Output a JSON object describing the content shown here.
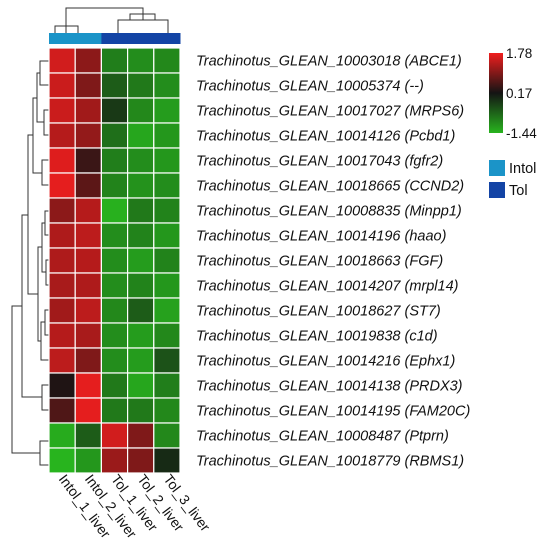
{
  "chart_data": {
    "type": "heatmap",
    "columns": [
      "Intol_1_liver",
      "Intol_2_liver",
      "Tol_1_liver",
      "Tol_2_liver",
      "Tol_3_liver"
    ],
    "column_groups": [
      "Intol",
      "Intol",
      "Tol",
      "Tol",
      "Tol"
    ],
    "rows": [
      "Trachinotus_GLEAN_10003018 (ABCE1)",
      "Trachinotus_GLEAN_10005374 (--)",
      "Trachinotus_GLEAN_10017027 (MRPS6)",
      "Trachinotus_GLEAN_10014126 (Pcbd1)",
      "Trachinotus_GLEAN_10017043 (fgfr2)",
      "Trachinotus_GLEAN_10018665 (CCND2)",
      "Trachinotus_GLEAN_10008835 (Minpp1)",
      "Trachinotus_GLEAN_10014196 (haao)",
      "Trachinotus_GLEAN_10018663 (FGF)",
      "Trachinotus_GLEAN_10014207 (mrpl14)",
      "Trachinotus_GLEAN_10018627 (ST7)",
      "Trachinotus_GLEAN_10019838 (c1d)",
      "Trachinotus_GLEAN_10014216 (Ephx1)",
      "Trachinotus_GLEAN_10014138 (PRDX3)",
      "Trachinotus_GLEAN_10014195 (FAM20C)",
      "Trachinotus_GLEAN_10008487 (Ptprn)",
      "Trachinotus_GLEAN_10018779 (RBMS1)"
    ],
    "values": [
      [
        1.55,
        1.05,
        -0.9,
        -1.05,
        -1.0
      ],
      [
        1.5,
        0.95,
        -0.55,
        -0.85,
        -1.05
      ],
      [
        1.5,
        1.2,
        -0.2,
        -1.0,
        -1.2
      ],
      [
        1.35,
        1.1,
        -0.75,
        -1.3,
        -1.15
      ],
      [
        1.65,
        0.45,
        -0.9,
        -1.05,
        -1.15
      ],
      [
        1.7,
        0.7,
        -0.95,
        -1.1,
        -1.05
      ],
      [
        1.05,
        1.35,
        -1.4,
        -0.85,
        -0.95
      ],
      [
        1.3,
        1.4,
        -1.05,
        -0.95,
        -1.15
      ],
      [
        1.3,
        1.35,
        -1.05,
        -1.2,
        -0.95
      ],
      [
        1.25,
        1.3,
        -1.05,
        -0.95,
        -1.15
      ],
      [
        1.2,
        1.4,
        -1.0,
        -0.55,
        -1.25
      ],
      [
        1.35,
        1.25,
        -1.05,
        -1.2,
        -1.0
      ],
      [
        1.4,
        0.95,
        -1.05,
        -1.2,
        -0.45
      ],
      [
        0.25,
        1.7,
        -0.85,
        -1.3,
        -0.9
      ],
      [
        0.6,
        1.7,
        -0.85,
        -0.85,
        -1.0
      ],
      [
        -1.35,
        -0.55,
        1.55,
        0.95,
        -1.0
      ],
      [
        -1.45,
        -1.15,
        1.15,
        0.95,
        -0.05
      ]
    ],
    "color_scale": {
      "min": -1.44,
      "mid": 0.17,
      "max": 1.78,
      "ticks": [
        "1.78",
        "0.17",
        "-1.44"
      ],
      "colors": {
        "low": "#28b41e",
        "mid": "#141414",
        "high": "#f01e1e"
      }
    },
    "group_legend": [
      {
        "label": "Intol",
        "color": "#1b94c8"
      },
      {
        "label": "Tol",
        "color": "#1344a5"
      }
    ]
  }
}
